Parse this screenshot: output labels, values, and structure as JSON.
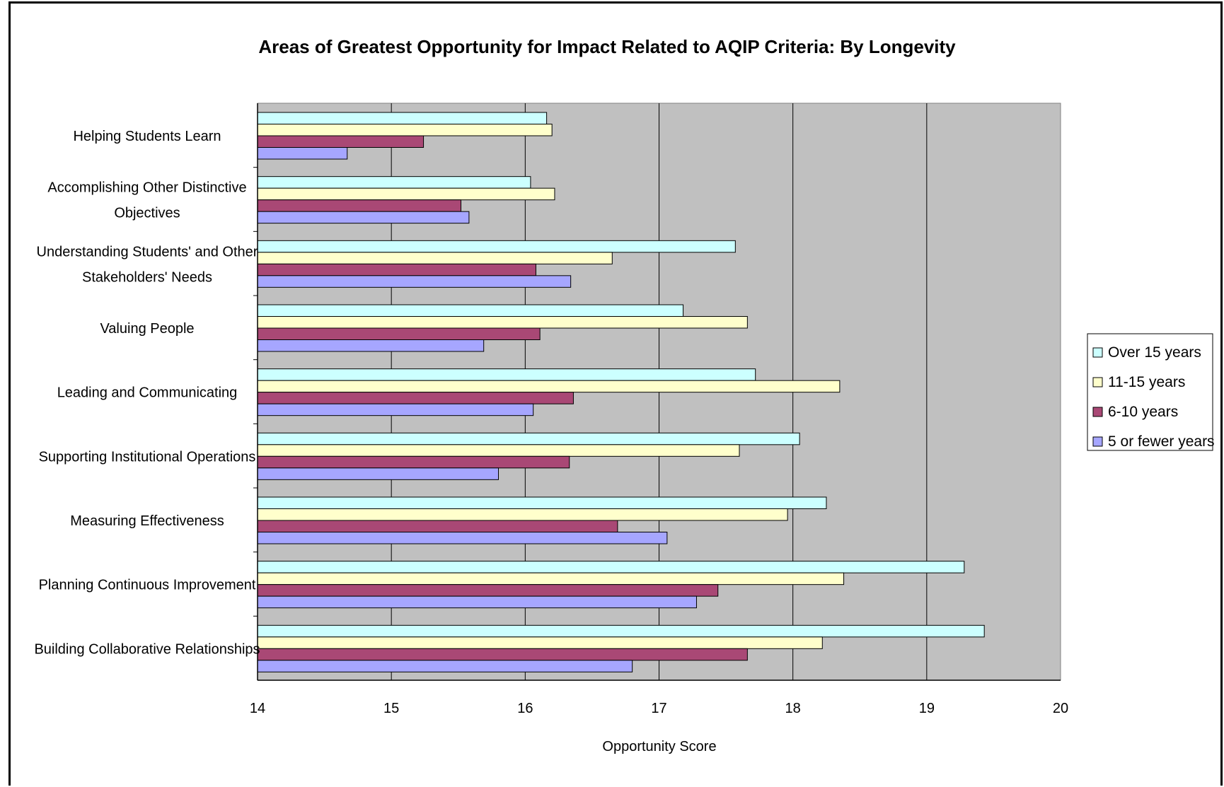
{
  "chart_data": {
    "type": "bar",
    "orientation": "horizontal",
    "title": "Areas of Greatest Opportunity for Impact Related to AQIP Criteria: By Longevity",
    "xlabel": "Opportunity Score",
    "ylabel": "",
    "xlim": [
      14,
      20
    ],
    "xticks": [
      "14",
      "15",
      "16",
      "17",
      "18",
      "19",
      "20"
    ],
    "grid": true,
    "legend_position": "right",
    "categories": [
      [
        "Helping Students Learn"
      ],
      [
        "Accomplishing Other Distinctive",
        "Objectives"
      ],
      [
        "Understanding Students' and Other",
        "Stakeholders' Needs"
      ],
      [
        "Valuing People"
      ],
      [
        "Leading and Communicating"
      ],
      [
        "Supporting Institutional Operations"
      ],
      [
        "Measuring Effectiveness"
      ],
      [
        "Planning Continuous Improvement"
      ],
      [
        "Building Collaborative Relationships"
      ]
    ],
    "series": [
      {
        "name": "Over 15 years",
        "color": "#ccffff",
        "values": [
          16.16,
          16.04,
          17.57,
          17.18,
          17.72,
          18.05,
          18.25,
          19.28,
          19.43
        ]
      },
      {
        "name": "11-15 years",
        "color": "#ffffcc",
        "values": [
          16.2,
          16.22,
          16.65,
          17.66,
          18.35,
          17.6,
          17.96,
          18.38,
          18.22
        ]
      },
      {
        "name": "6-10 years",
        "color": "#a94875",
        "values": [
          15.24,
          15.52,
          16.08,
          16.11,
          16.36,
          16.33,
          16.69,
          17.44,
          17.66
        ]
      },
      {
        "name": "5 or fewer years",
        "color": "#a6a6ff",
        "values": [
          14.67,
          15.58,
          16.34,
          15.69,
          16.06,
          15.8,
          17.06,
          17.28,
          16.8
        ]
      }
    ],
    "colors": {
      "plot_background": "#c0c0c0",
      "gridline": "#000000"
    }
  }
}
